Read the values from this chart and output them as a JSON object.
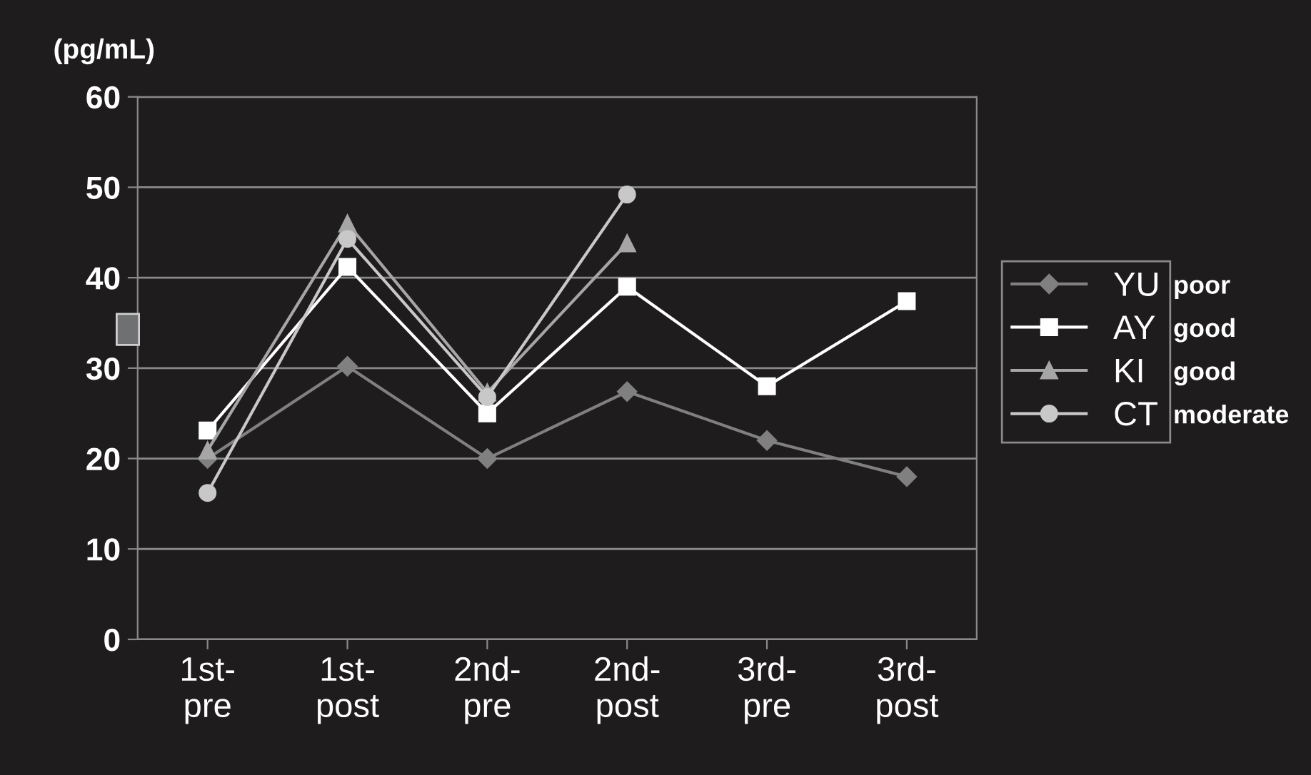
{
  "chart_data": {
    "type": "line",
    "ylabel": "(pg/mL)",
    "categories": [
      "1st-\npre",
      "1st-\npost",
      "2nd-\npre",
      "2nd-\npost",
      "3rd-\npre",
      "3rd-\npost"
    ],
    "series": [
      {
        "name": "YU",
        "color": "#808080",
        "marker": "diamond",
        "values": [
          20,
          30.2,
          20,
          27.4,
          22,
          18
        ]
      },
      {
        "name": "AY",
        "color": "#ffffff",
        "marker": "square",
        "values": [
          23.1,
          41.2,
          25,
          39,
          28,
          37.4
        ]
      },
      {
        "name": "KI",
        "color": "#a6a6a6",
        "marker": "triangle",
        "values": [
          20.9,
          46,
          27.3,
          43.8,
          null,
          null
        ]
      },
      {
        "name": "CT",
        "color": "#c8c8c8",
        "marker": "circle",
        "values": [
          16.2,
          44.3,
          26.8,
          49.2,
          null,
          null
        ]
      }
    ],
    "ylim": [
      0,
      60
    ],
    "yticks": [
      0,
      10,
      20,
      30,
      40,
      50,
      60
    ],
    "grid": "y",
    "legend": "right",
    "line_style": "solid",
    "annotations": [
      "poor",
      "good",
      "good",
      "moderate"
    ]
  }
}
